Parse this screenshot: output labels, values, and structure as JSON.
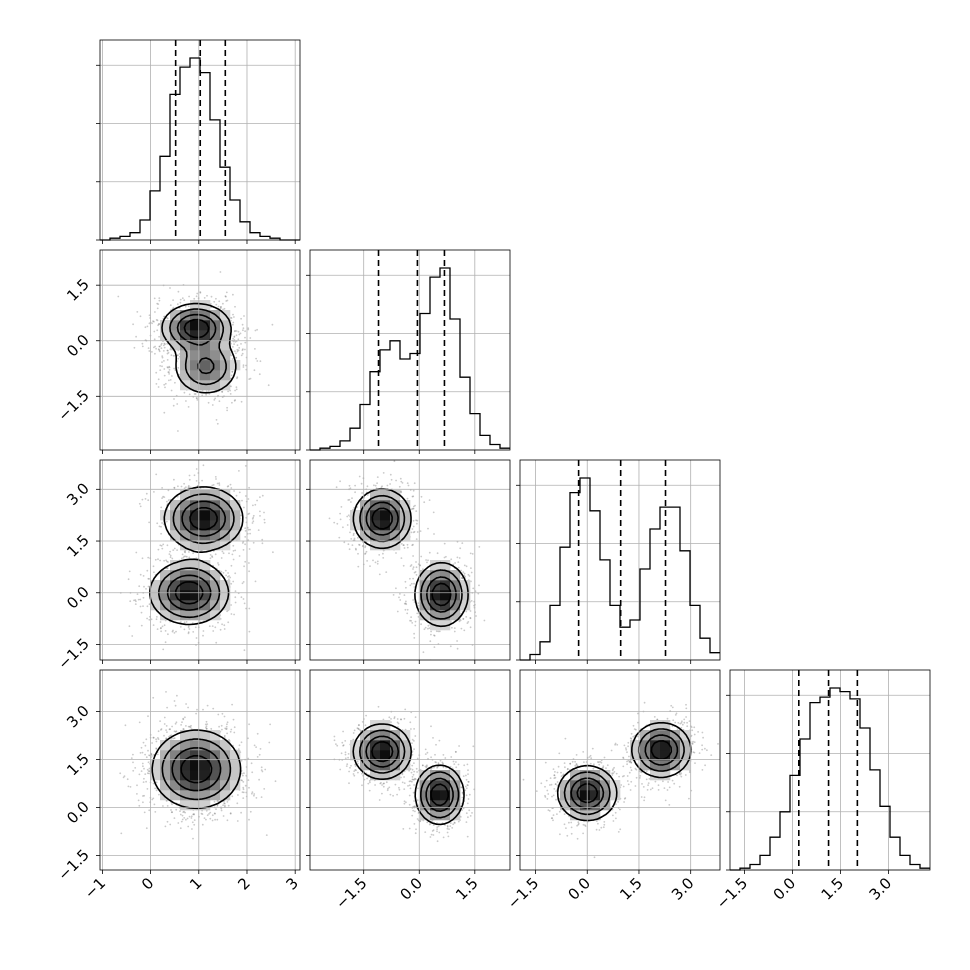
{
  "chart_data": {
    "type": "corner",
    "grid": true,
    "params": [
      {
        "name": "",
        "range": [
          -1.05,
          3.1
        ],
        "ticks": [
          -1,
          0,
          1,
          2,
          3
        ],
        "tick_labels": [
          "−1",
          "0",
          "1",
          "2",
          "3"
        ],
        "quantiles": [
          0.52,
          1.03,
          1.55
        ],
        "hist": [
          0,
          0.01,
          0.02,
          0.04,
          0.11,
          0.27,
          0.46,
          0.8,
          0.95,
          1.0,
          0.92,
          0.66,
          0.4,
          0.22,
          0.1,
          0.04,
          0.02,
          0.01,
          0,
          0
        ]
      },
      {
        "name": "",
        "range": [
          -2.95,
          2.45
        ],
        "ticks": [
          -1.5,
          0.0,
          1.5
        ],
        "tick_labels": [
          "−1.5",
          "0.0",
          "1.5"
        ],
        "quantiles": [
          -1.1,
          -0.05,
          0.68
        ],
        "hist": [
          0,
          0.01,
          0.02,
          0.05,
          0.12,
          0.25,
          0.43,
          0.55,
          0.6,
          0.5,
          0.53,
          0.75,
          0.95,
          1.0,
          0.72,
          0.4,
          0.2,
          0.08,
          0.03,
          0.01
        ]
      },
      {
        "name": "",
        "range": [
          -1.95,
          3.85
        ],
        "ticks": [
          -1.5,
          0.0,
          1.5,
          3.0
        ],
        "tick_labels": [
          "−1.5",
          "0.0",
          "1.5",
          "3.0"
        ],
        "quantiles": [
          -0.25,
          0.97,
          2.27
        ],
        "hist": [
          0,
          0.03,
          0.1,
          0.3,
          0.62,
          0.92,
          1.0,
          0.82,
          0.55,
          0.3,
          0.18,
          0.22,
          0.5,
          0.72,
          0.84,
          0.84,
          0.6,
          0.3,
          0.12,
          0.04
        ]
      },
      {
        "name": "",
        "range": [
          -1.95,
          4.3
        ],
        "ticks": [
          -1.5,
          0.0,
          1.5,
          3.0
        ],
        "tick_labels": [
          "−1.5",
          "0.0",
          "1.5",
          "3.0"
        ],
        "quantiles": [
          0.2,
          1.13,
          2.03
        ],
        "hist": [
          0,
          0.01,
          0.03,
          0.08,
          0.18,
          0.32,
          0.52,
          0.72,
          0.92,
          0.95,
          1.0,
          0.98,
          0.94,
          0.78,
          0.55,
          0.35,
          0.18,
          0.08,
          0.03,
          0.01
        ]
      }
    ],
    "hist_yticks": [
      0.0,
      0.32,
      0.64,
      0.96
    ],
    "pairs": [
      {
        "row": 1,
        "col": 0,
        "modes": [
          {
            "mx": 0.95,
            "my": 0.35,
            "sx": 0.35,
            "sy": 0.32,
            "w": 1.0
          },
          {
            "mx": 1.15,
            "my": -0.7,
            "sx": 0.35,
            "sy": 0.4,
            "w": 0.6
          }
        ]
      },
      {
        "row": 2,
        "col": 0,
        "modes": [
          {
            "mx": 1.1,
            "my": 2.15,
            "sx": 0.4,
            "sy": 0.45,
            "w": 1.0
          },
          {
            "mx": 0.8,
            "my": 0.0,
            "sx": 0.4,
            "sy": 0.45,
            "w": 1.0
          }
        ]
      },
      {
        "row": 2,
        "col": 1,
        "modes": [
          {
            "mx": -1.0,
            "my": 2.15,
            "sx": 0.38,
            "sy": 0.42,
            "w": 1.0
          },
          {
            "mx": 0.6,
            "my": -0.05,
            "sx": 0.35,
            "sy": 0.45,
            "w": 1.0
          }
        ]
      },
      {
        "row": 3,
        "col": 0,
        "modes": [
          {
            "mx": 0.95,
            "my": 1.2,
            "sx": 0.45,
            "sy": 0.6,
            "w": 1.0
          }
        ]
      },
      {
        "row": 3,
        "col": 1,
        "modes": [
          {
            "mx": -1.0,
            "my": 1.75,
            "sx": 0.38,
            "sy": 0.42,
            "w": 1.0
          },
          {
            "mx": 0.55,
            "my": 0.4,
            "sx": 0.32,
            "sy": 0.45,
            "w": 1.0
          }
        ]
      },
      {
        "row": 3,
        "col": 2,
        "modes": [
          {
            "mx": 0.0,
            "my": 0.45,
            "sx": 0.42,
            "sy": 0.42,
            "w": 1.0
          },
          {
            "mx": 2.15,
            "my": 1.8,
            "sx": 0.42,
            "sy": 0.42,
            "w": 1.0
          }
        ]
      }
    ]
  }
}
